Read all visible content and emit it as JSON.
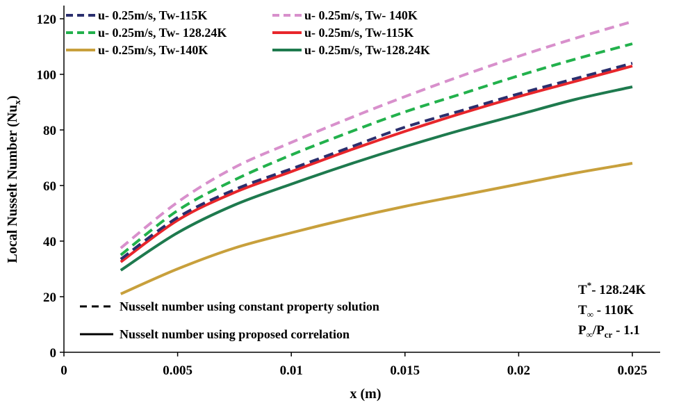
{
  "chart_data": {
    "type": "line",
    "xlabel": "x (m)",
    "ylabel": "Local Nusselt Number (Nu",
    "ylabel_sub": "x",
    "ylabel_close": ")",
    "xlim": [
      0,
      0.025
    ],
    "ylim": [
      0,
      120
    ],
    "grid": false,
    "x_ticks": [
      0,
      0.005,
      0.01,
      0.015,
      0.02,
      0.025
    ],
    "x_tick_labels": [
      "0",
      "0.005",
      "0.01",
      "0.015",
      "0.02",
      "0.025"
    ],
    "y_ticks": [
      0,
      20,
      40,
      60,
      80,
      100,
      120
    ],
    "y_tick_labels": [
      "0",
      "20",
      "40",
      "60",
      "80",
      "100",
      "120"
    ],
    "x": [
      0.0025,
      0.005,
      0.0075,
      0.01,
      0.0125,
      0.015,
      0.0175,
      0.02,
      0.0225,
      0.025
    ],
    "series": [
      {
        "name": "u- 0.25m/s, Tw-115K",
        "style": "dashed",
        "color": "#2b2f6e",
        "values": [
          33.5,
          48.5,
          58.5,
          66.0,
          73.5,
          81.0,
          87.0,
          93.0,
          98.5,
          104.0
        ]
      },
      {
        "name": "u- 0.25m/s, Tw- 140K",
        "style": "dashed",
        "color": "#d890cc",
        "values": [
          37.5,
          54.0,
          66.5,
          75.5,
          84.0,
          92.0,
          99.5,
          106.5,
          113.0,
          119.0
        ]
      },
      {
        "name": "u- 0.25m/s, Tw- 128.24K",
        "style": "dashed",
        "color": "#22b14c",
        "values": [
          35.0,
          51.0,
          62.0,
          71.0,
          79.0,
          86.5,
          93.0,
          99.5,
          105.5,
          111.0
        ]
      },
      {
        "name": "u- 0.25m/s, Tw-115K",
        "style": "solid",
        "color": "#e8262b",
        "values": [
          32.5,
          47.5,
          57.5,
          65.0,
          72.5,
          79.5,
          86.0,
          92.0,
          97.5,
          103.0
        ]
      },
      {
        "name": "u- 0.25m/s, Tw-140K",
        "style": "solid",
        "color": "#c8a03c",
        "values": [
          21.0,
          30.0,
          37.5,
          43.0,
          48.0,
          52.5,
          56.5,
          60.5,
          64.5,
          68.0
        ]
      },
      {
        "name": "u- 0.25m/s, Tw-128.24K",
        "style": "solid",
        "color": "#1e7a4e",
        "values": [
          29.5,
          43.0,
          53.0,
          60.5,
          67.5,
          74.0,
          80.0,
          85.5,
          91.0,
          95.5
        ]
      }
    ],
    "legend": {
      "placement": "top-left",
      "entries": [
        "u- 0.25m/s, Tw-115K",
        "u- 0.25m/s, Tw- 140K",
        "u- 0.25m/s, Tw- 128.24K",
        "u- 0.25m/s, Tw-115K",
        "u- 0.25m/s, Tw-140K",
        "u- 0.25m/s, Tw-128.24K"
      ]
    },
    "style_legend": {
      "dashed": "Nusselt number using constant property solution",
      "solid": "Nusselt number using proposed correlation"
    },
    "annotations": {
      "t_star": {
        "base": "T",
        "sup": "*",
        "rest": "- 128.24K"
      },
      "t_inf": {
        "base": "T",
        "sub": "∞",
        "rest": " - 110K"
      },
      "p_ratio": {
        "base": "P",
        "sub": "∞",
        "mid": "/P",
        "sub2": "cr",
        "rest": " - 1.1"
      }
    }
  }
}
